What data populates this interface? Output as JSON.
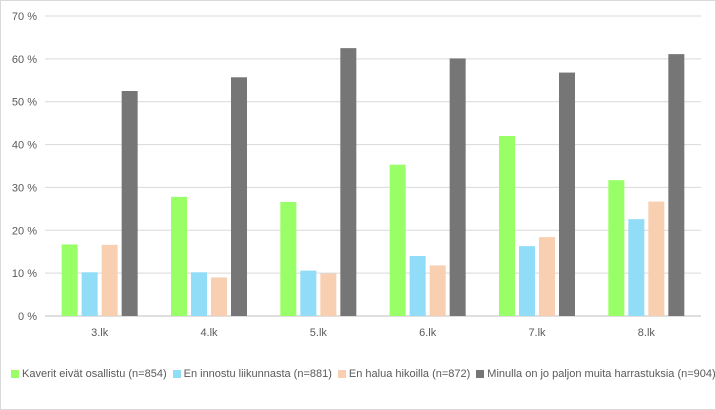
{
  "chart_data": {
    "type": "bar",
    "categories": [
      "3.lk",
      "4.lk",
      "5.lk",
      "6.lk",
      "7.lk",
      "8.lk"
    ],
    "series": [
      {
        "name": "Kaverit eivät osallistu (n=854)",
        "color": "#99ff66",
        "values": [
          16.7,
          27.8,
          26.6,
          35.3,
          42.0,
          31.7
        ]
      },
      {
        "name": "En innostu liikunnasta (n=881)",
        "color": "#91dcf7",
        "values": [
          10.2,
          10.2,
          10.6,
          14.0,
          16.3,
          22.6
        ]
      },
      {
        "name": "En halua hikoilla (n=872)",
        "color": "#f8cfb0",
        "values": [
          16.6,
          9.0,
          9.9,
          11.8,
          18.4,
          26.7
        ]
      },
      {
        "name": "Minulla on jo paljon muita harrastuksia (n=904)",
        "color": "#767676",
        "values": [
          52.5,
          55.7,
          62.5,
          60.1,
          56.8,
          61.1
        ]
      }
    ],
    "yticks": [
      "0 %",
      "10 %",
      "20 %",
      "30 %",
      "40 %",
      "50 %",
      "60 %",
      "70 %"
    ],
    "ylim": [
      0,
      70
    ],
    "grid": true,
    "legend": "bottom"
  }
}
